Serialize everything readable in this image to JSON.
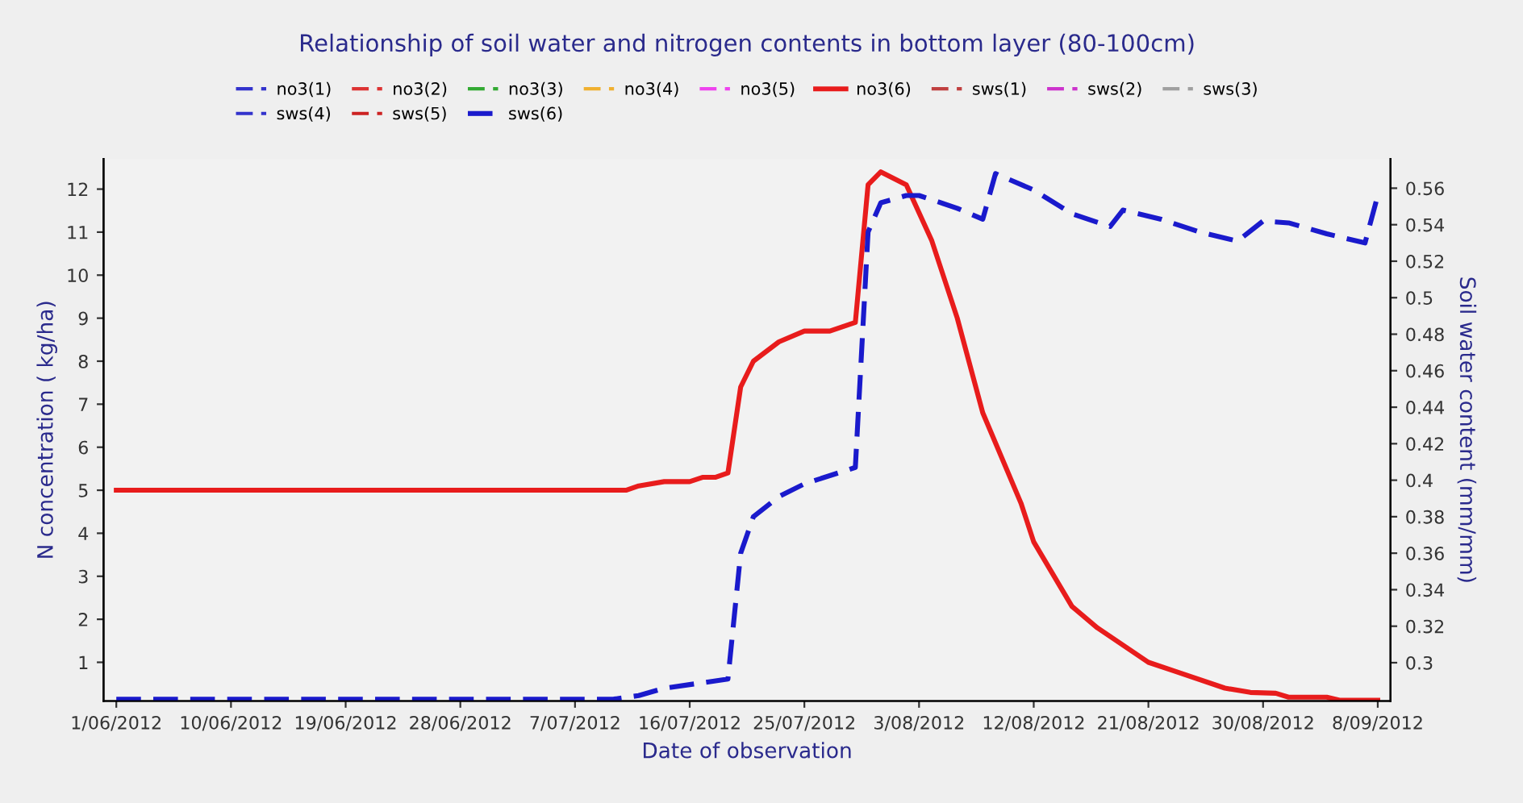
{
  "chart_data": {
    "type": "line",
    "title": "Relationship of soil water and nitrogen contents in bottom layer (80-100cm)",
    "xlabel": "Date of observation",
    "ylabel": "N concentration ( kg/ha)",
    "y2label": "Soil water content (mm/mm)",
    "xlim": [
      "2012-05-31",
      "2012-09-09"
    ],
    "xticks": [
      {
        "value": "2012-06-01",
        "label": "1/06/2012"
      },
      {
        "value": "2012-06-10",
        "label": "10/06/2012"
      },
      {
        "value": "2012-06-19",
        "label": "19/06/2012"
      },
      {
        "value": "2012-06-28",
        "label": "28/06/2012"
      },
      {
        "value": "2012-07-07",
        "label": "7/07/2012"
      },
      {
        "value": "2012-07-16",
        "label": "16/07/2012"
      },
      {
        "value": "2012-07-25",
        "label": "25/07/2012"
      },
      {
        "value": "2012-08-03",
        "label": "3/08/2012"
      },
      {
        "value": "2012-08-12",
        "label": "12/08/2012"
      },
      {
        "value": "2012-08-21",
        "label": "21/08/2012"
      },
      {
        "value": "2012-08-30",
        "label": "30/08/2012"
      },
      {
        "value": "2012-09-08",
        "label": "8/09/2012"
      }
    ],
    "ylim": [
      0.1,
      12.7
    ],
    "yticks": [
      1,
      2,
      3,
      4,
      5,
      6,
      7,
      8,
      9,
      10,
      11,
      12
    ],
    "y2lim": [
      0.279,
      0.576
    ],
    "y2ticks": [
      0.3,
      0.32,
      0.34,
      0.36,
      0.38,
      0.4,
      0.42,
      0.44,
      0.46,
      0.48,
      0.5,
      0.52,
      0.54,
      0.56
    ],
    "grid": false,
    "legend": "top",
    "marker": "none",
    "series": [
      {
        "name": "no3(1)",
        "color": "#3333cc",
        "line_style": "dashed"
      },
      {
        "name": "no3(2)",
        "color": "#dd3333",
        "line_style": "dashed"
      },
      {
        "name": "no3(3)",
        "color": "#33aa33",
        "line_style": "dashed"
      },
      {
        "name": "no3(4)",
        "color": "#f0b030",
        "line_style": "dashed"
      },
      {
        "name": "no3(5)",
        "color": "#ee44ee",
        "line_style": "dashed"
      },
      {
        "name": "no3(6)",
        "color": "#e81c1c",
        "line_style": "solid",
        "x": [
          "2012-06-01",
          "2012-07-11",
          "2012-07-12",
          "2012-07-14",
          "2012-07-16",
          "2012-07-17",
          "2012-07-18",
          "2012-07-19",
          "2012-07-20",
          "2012-07-21",
          "2012-07-23",
          "2012-07-25",
          "2012-07-27",
          "2012-07-29",
          "2012-07-30",
          "2012-07-31",
          "2012-08-02",
          "2012-08-04",
          "2012-08-06",
          "2012-08-08",
          "2012-08-11",
          "2012-08-12",
          "2012-08-15",
          "2012-08-17",
          "2012-08-21",
          "2012-08-23",
          "2012-08-27",
          "2012-08-29",
          "2012-08-31",
          "2012-09-01",
          "2012-09-04",
          "2012-09-05",
          "2012-09-08"
        ],
        "values": [
          5.0,
          5.0,
          5.1,
          5.2,
          5.2,
          5.3,
          5.3,
          5.4,
          7.4,
          8.0,
          8.45,
          8.7,
          8.7,
          8.9,
          12.1,
          12.4,
          12.1,
          10.8,
          9.0,
          6.8,
          4.7,
          3.8,
          2.3,
          1.8,
          1.0,
          0.8,
          0.4,
          0.3,
          0.28,
          0.19,
          0.19,
          0.12,
          0.12
        ]
      },
      {
        "name": "sws(1)",
        "color": "#c04040",
        "line_style": "dashed",
        "axis": "y2"
      },
      {
        "name": "sws(2)",
        "color": "#cc33cc",
        "line_style": "dashed",
        "axis": "y2"
      },
      {
        "name": "sws(3)",
        "color": "#a0a0a0",
        "line_style": "dashed",
        "axis": "y2"
      },
      {
        "name": "sws(4)",
        "color": "#3333cc",
        "line_style": "dashed",
        "axis": "y2"
      },
      {
        "name": "sws(5)",
        "color": "#cc2222",
        "line_style": "dashed",
        "axis": "y2"
      },
      {
        "name": "sws(6)",
        "color": "#1a1acc",
        "line_style": "dashed",
        "axis": "y2",
        "x": [
          "2012-06-01",
          "2012-07-10",
          "2012-07-12",
          "2012-07-14",
          "2012-07-16",
          "2012-07-19",
          "2012-07-20",
          "2012-07-21",
          "2012-07-23",
          "2012-07-25",
          "2012-07-29",
          "2012-07-30",
          "2012-07-31",
          "2012-08-02",
          "2012-08-03",
          "2012-08-06",
          "2012-08-08",
          "2012-08-09",
          "2012-08-12",
          "2012-08-15",
          "2012-08-18",
          "2012-08-19",
          "2012-08-22",
          "2012-08-25",
          "2012-08-28",
          "2012-08-30",
          "2012-09-01",
          "2012-09-04",
          "2012-09-07",
          "2012-09-08"
        ],
        "values": [
          0.28,
          0.28,
          0.282,
          0.286,
          0.288,
          0.291,
          0.36,
          0.38,
          0.391,
          0.398,
          0.407,
          0.536,
          0.552,
          0.556,
          0.556,
          0.549,
          0.543,
          0.568,
          0.559,
          0.546,
          0.539,
          0.548,
          0.543,
          0.536,
          0.531,
          0.542,
          0.541,
          0.535,
          0.53,
          0.556
        ]
      }
    ]
  }
}
